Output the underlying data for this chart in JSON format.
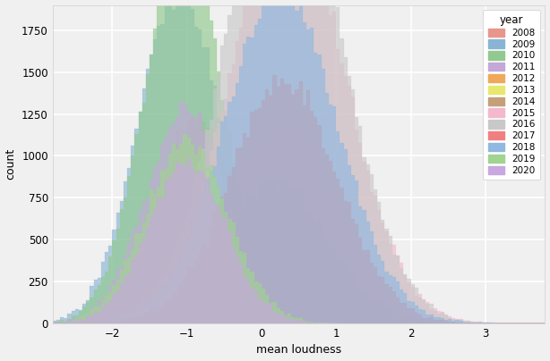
{
  "title": "",
  "xlabel": "mean loudness",
  "ylabel": "count",
  "xlim": [
    -2.8,
    3.8
  ],
  "ylim": [
    0,
    1900
  ],
  "yticks": [
    0,
    250,
    500,
    750,
    1000,
    1250,
    1500,
    1750
  ],
  "xticks": [
    -2,
    -1,
    0,
    1,
    2,
    3
  ],
  "figsize": [
    6.14,
    4.04
  ],
  "dpi": 100,
  "legend_title": "year",
  "years": [
    2008,
    2009,
    2010,
    2011,
    2012,
    2013,
    2014,
    2015,
    2016,
    2017,
    2018,
    2019,
    2020
  ],
  "colors": {
    "2008": "#e8968c",
    "2009": "#8ab4d4",
    "2010": "#91c98e",
    "2011": "#c4a8d8",
    "2012": "#f0a85a",
    "2013": "#e8e870",
    "2014": "#c4a07a",
    "2015": "#f4b8cc",
    "2016": "#c8c8c8",
    "2017": "#f08080",
    "2018": "#90b8e0",
    "2019": "#a0d490",
    "2020": "#c8a8e0"
  },
  "bin_width": 0.05,
  "x_min": -3.0,
  "x_max": 4.0,
  "distributions": {
    "2008": {
      "mean": -0.85,
      "std": 0.52,
      "n": 32000
    },
    "2009": {
      "mean": -1.1,
      "std": 0.55,
      "n": 55000
    },
    "2010": {
      "mean": -1.05,
      "std": 0.52,
      "n": 60000
    },
    "2011": {
      "mean": -1.0,
      "std": 0.55,
      "n": 35000
    },
    "2012": {
      "mean": 0.3,
      "std": 0.72,
      "n": 42000
    },
    "2013": {
      "mean": 0.25,
      "std": 0.68,
      "n": 18000
    },
    "2014": {
      "mean": 0.2,
      "std": 0.7,
      "n": 30000
    },
    "2015": {
      "mean": 0.35,
      "std": 0.76,
      "n": 95000
    },
    "2016": {
      "mean": 0.3,
      "std": 0.76,
      "n": 110000
    },
    "2017": {
      "mean": 0.3,
      "std": 0.72,
      "n": 52000
    },
    "2018": {
      "mean": 0.25,
      "std": 0.76,
      "n": 75000
    },
    "2019": {
      "mean": -1.0,
      "std": 0.55,
      "n": 30000
    },
    "2020": {
      "mean": -1.0,
      "std": 0.52,
      "n": 25000
    }
  },
  "background_color": "#f0f0f0",
  "grid_color": "white",
  "alpha": 0.65
}
